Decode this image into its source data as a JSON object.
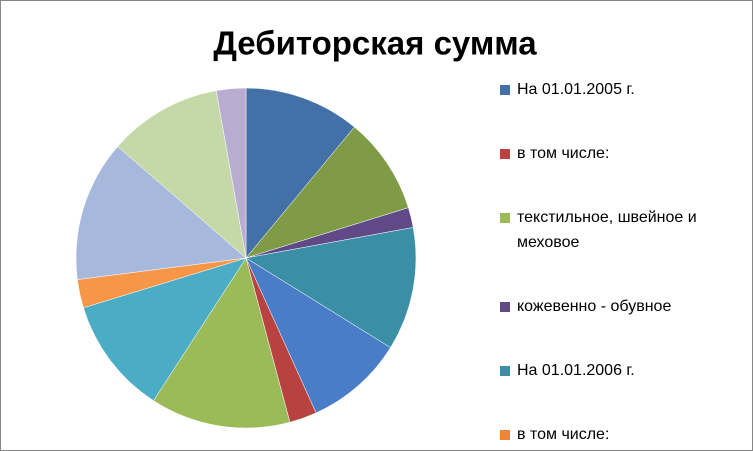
{
  "chart_data": {
    "type": "pie",
    "title": "Дебиторская сумма",
    "categories": [
      "На 01.01.2005 г.",
      "в том числе:",
      "текстильное, швейное и меховое",
      "кожевенно - обувное",
      "На 01.01.2006 г.",
      "в том числе:",
      null,
      null,
      null,
      null,
      null,
      null
    ],
    "values": [
      11.0,
      9.2,
      1.9,
      11.7,
      9.4,
      2.6,
      13.3,
      11.1,
      2.7,
      13.4,
      10.8,
      2.8
    ],
    "colors": [
      "#4470a8",
      "#7f9b45",
      "#5f4a87",
      "#3a8fa6",
      "#4a7dc7",
      "#b84240",
      "#9bbb59",
      "#4bacc6",
      "#f79646",
      "#a6b8db",
      "#c5d8a7",
      "#b8add0"
    ],
    "legend_colors": [
      "#4470a8",
      "#b84240",
      "#9bbb59",
      "#5f4a87",
      "#3a8fa6",
      "#e8853f"
    ]
  }
}
